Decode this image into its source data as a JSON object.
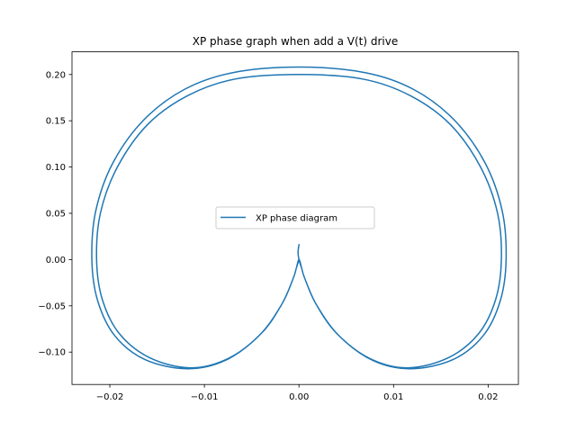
{
  "chart_data": {
    "type": "line",
    "title": "XP phase graph when add a V(t) drive",
    "xlabel": "",
    "ylabel": "",
    "xlim": [
      -0.024,
      0.0232
    ],
    "ylim": [
      -0.135,
      0.2245
    ],
    "xticks": [
      -0.02,
      -0.01,
      0.0,
      0.01,
      0.02
    ],
    "xtick_labels": [
      "−0.02",
      "−0.01",
      "0.00",
      "0.01",
      "0.02"
    ],
    "yticks": [
      -0.1,
      -0.05,
      0.0,
      0.05,
      0.1,
      0.15,
      0.2
    ],
    "ytick_labels": [
      "−0.10",
      "−0.05",
      "0.00",
      "0.05",
      "0.10",
      "0.15",
      "0.20"
    ],
    "grid": false,
    "legend_position": "center",
    "series": [
      {
        "name": "XP phase diagram",
        "color": "#1f77b4",
        "x": [
          0.0,
          -0.0003,
          -0.0006,
          -0.0018,
          -0.004,
          -0.0075,
          -0.0115,
          -0.0158,
          -0.019,
          -0.0208,
          -0.0214,
          -0.021,
          -0.0192,
          -0.016,
          -0.0118,
          -0.0068,
          0.0,
          0.0068,
          0.0118,
          0.016,
          0.0192,
          0.021,
          0.0214,
          0.0208,
          0.019,
          0.0158,
          0.0115,
          0.0075,
          0.004,
          0.0018,
          0.0006,
          0.0003,
          0.0,
          -0.0003,
          -0.0006,
          -0.0018,
          -0.0042,
          -0.0078,
          -0.0118,
          -0.0163,
          -0.0195,
          -0.0213,
          -0.0219,
          -0.0215,
          -0.0197,
          -0.0164,
          -0.0121,
          -0.007,
          0.0,
          0.007,
          0.0121,
          0.0164,
          0.0197,
          0.0215,
          0.0219,
          0.0213,
          0.0195,
          0.0163,
          0.0118,
          0.0078,
          0.0042,
          0.0018,
          0.0006,
          0.0003,
          0.0,
          -0.0001,
          0.0
        ],
        "y": [
          0.0,
          -0.01,
          -0.02,
          -0.048,
          -0.08,
          -0.107,
          -0.117,
          -0.106,
          -0.08,
          -0.043,
          0.0,
          0.05,
          0.1,
          0.146,
          0.177,
          0.195,
          0.2,
          0.195,
          0.177,
          0.146,
          0.1,
          0.05,
          0.0,
          -0.043,
          -0.08,
          -0.106,
          -0.117,
          -0.107,
          -0.08,
          -0.048,
          -0.02,
          -0.01,
          0.0,
          -0.01,
          -0.02,
          -0.048,
          -0.082,
          -0.109,
          -0.118,
          -0.108,
          -0.082,
          -0.044,
          0.0,
          0.052,
          0.104,
          0.151,
          0.184,
          0.202,
          0.208,
          0.202,
          0.184,
          0.151,
          0.104,
          0.052,
          0.0,
          -0.044,
          -0.082,
          -0.108,
          -0.118,
          -0.109,
          -0.082,
          -0.048,
          -0.02,
          -0.01,
          0.0,
          0.008,
          0.016
        ]
      }
    ]
  }
}
